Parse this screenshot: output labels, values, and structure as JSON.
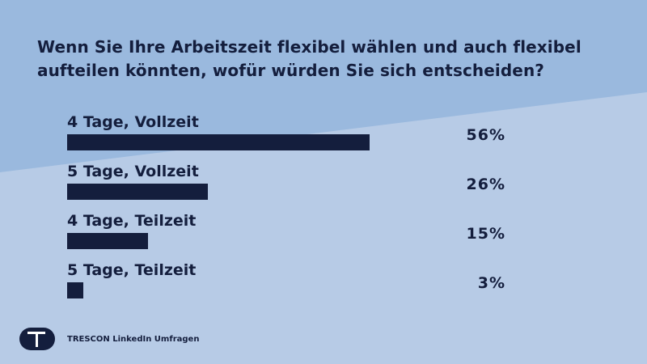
{
  "colors": {
    "background_light": "#b7cbe6",
    "background_dark": "#9ab9de",
    "bar": "#141e3d",
    "text": "#141e3d"
  },
  "title": {
    "line1": "Wenn Sie Ihre Arbeitszeit flexibel wählen und auch flexibel",
    "line2": "aufteilen könnten, wofür würden Sie sich entscheiden?"
  },
  "chart_data": {
    "type": "bar",
    "orientation": "horizontal",
    "title": "Wenn Sie Ihre Arbeitszeit flexibel wählen und auch flexibel aufteilen könnten, wofür würden Sie sich entscheiden?",
    "categories": [
      "4 Tage, Vollzeit",
      "5 Tage, Vollzeit",
      "4 Tage, Teilzeit",
      "5 Tage, Teilzeit"
    ],
    "values": [
      56,
      26,
      15,
      3
    ],
    "value_labels": [
      "56%",
      "26%",
      "15%",
      "3%"
    ],
    "unit": "%",
    "xlim": [
      0,
      100
    ],
    "xlabel": "",
    "ylabel": "",
    "grid": false,
    "legend": "none"
  },
  "footer": {
    "logo_icon": "trescon-t-logo",
    "text": "TRESCON LinkedIn Umfragen"
  }
}
